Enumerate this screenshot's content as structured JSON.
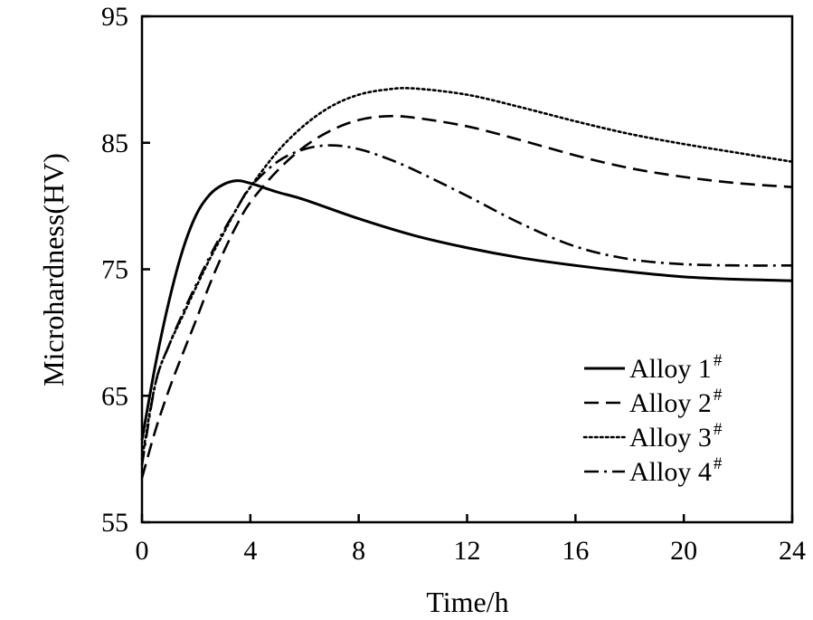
{
  "chart_data": {
    "type": "line",
    "title": "",
    "xlabel": "Time/h",
    "ylabel": "Microhardness(HV)",
    "xlim": [
      0,
      24
    ],
    "ylim": [
      55,
      95
    ],
    "xticks": [
      0,
      4,
      8,
      12,
      16,
      20,
      24
    ],
    "yticks": [
      55,
      65,
      75,
      85,
      95
    ],
    "xtick_labels": [
      "0",
      "4",
      "8",
      "12",
      "16",
      "20",
      "24"
    ],
    "ytick_labels": [
      "55",
      "65",
      "75",
      "85",
      "95"
    ],
    "grid": false,
    "legend_position": "bottom-right",
    "series": [
      {
        "name": "Alloy 1",
        "name_suffix": "#",
        "dash": "solid",
        "x": [
          0,
          0.5,
          1,
          1.5,
          2,
          2.5,
          3,
          3.5,
          4,
          5,
          6,
          8,
          10,
          12,
          14,
          16,
          18,
          20,
          22,
          24
        ],
        "y": [
          61.5,
          67.5,
          72.5,
          76.5,
          79.3,
          80.9,
          81.7,
          82.0,
          81.8,
          81.1,
          80.5,
          79.0,
          77.7,
          76.7,
          75.9,
          75.3,
          74.8,
          74.4,
          74.2,
          74.1
        ]
      },
      {
        "name": "Alloy 2",
        "name_suffix": "#",
        "dash": "dashed",
        "x": [
          0,
          0.5,
          1,
          1.5,
          2,
          2.5,
          3,
          3.5,
          4,
          5,
          6,
          7,
          8,
          9,
          10,
          12,
          14,
          16,
          18,
          20,
          22,
          24
        ],
        "y": [
          58.5,
          62.3,
          65.5,
          68.3,
          71.0,
          73.8,
          76.3,
          78.5,
          80.3,
          82.8,
          84.7,
          86.0,
          86.8,
          87.1,
          87.0,
          86.3,
          85.2,
          84.0,
          83.0,
          82.3,
          81.8,
          81.5
        ]
      },
      {
        "name": "Alloy 3",
        "name_suffix": "#",
        "dash": "dotted",
        "x": [
          0,
          0.5,
          1,
          1.5,
          2,
          2.5,
          3,
          3.5,
          4,
          5,
          6,
          7,
          8,
          9,
          10,
          12,
          14,
          16,
          18,
          20,
          22,
          24
        ],
        "y": [
          60.0,
          66.0,
          69.0,
          71.3,
          73.6,
          75.8,
          77.8,
          79.8,
          81.5,
          84.3,
          86.4,
          87.9,
          88.8,
          89.2,
          89.3,
          88.8,
          87.8,
          86.7,
          85.7,
          84.9,
          84.2,
          83.5
        ]
      },
      {
        "name": "Alloy 4",
        "name_suffix": "#",
        "dash": "dash-dot",
        "x": [
          0,
          0.5,
          1,
          1.5,
          2,
          2.5,
          3,
          3.5,
          4,
          5,
          6,
          7,
          8,
          9,
          10,
          12,
          14,
          16,
          18,
          20,
          22,
          24
        ],
        "y": [
          59.5,
          66.0,
          69.0,
          71.5,
          73.8,
          76.0,
          78.0,
          79.8,
          81.5,
          83.5,
          84.5,
          84.8,
          84.5,
          83.8,
          82.9,
          80.8,
          78.6,
          76.8,
          75.8,
          75.4,
          75.3,
          75.3
        ]
      }
    ]
  }
}
